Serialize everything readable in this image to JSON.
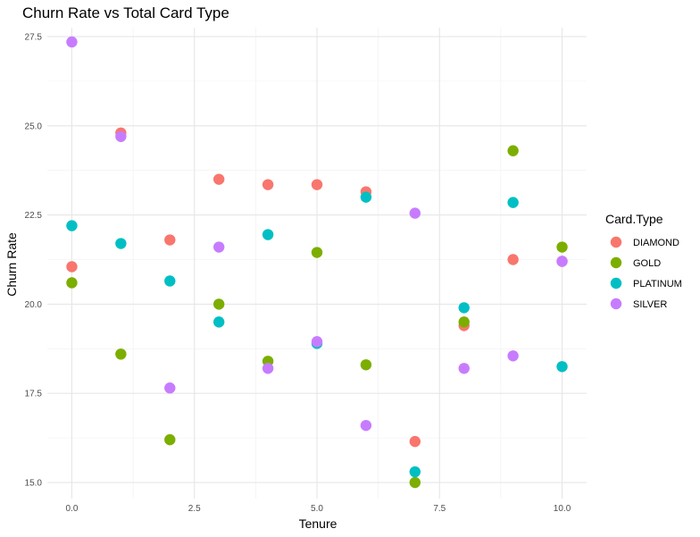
{
  "chart_data": {
    "type": "scatter",
    "title": "Churn Rate vs Total Card Type",
    "xlabel": "Tenure",
    "ylabel": "Churn Rate",
    "xlim": [
      -0.5,
      10.5
    ],
    "ylim": [
      14.55,
      27.75
    ],
    "x_ticks": [
      0.0,
      2.5,
      5.0,
      7.5,
      10.0
    ],
    "x_tick_labels": [
      "0.0",
      "2.5",
      "5.0",
      "7.5",
      "10.0"
    ],
    "y_ticks": [
      15.0,
      17.5,
      20.0,
      22.5,
      25.0,
      27.5
    ],
    "y_tick_labels": [
      "15.0",
      "17.5",
      "20.0",
      "22.5",
      "25.0",
      "27.5"
    ],
    "grid": true,
    "legend": {
      "title": "Card.Type",
      "position": "right"
    },
    "series": [
      {
        "name": "DIAMOND",
        "color": "#F8766D",
        "points": [
          {
            "x": 0,
            "y": 21.05
          },
          {
            "x": 1,
            "y": 24.8
          },
          {
            "x": 2,
            "y": 21.8
          },
          {
            "x": 3,
            "y": 23.5
          },
          {
            "x": 4,
            "y": 23.35
          },
          {
            "x": 5,
            "y": 23.35
          },
          {
            "x": 6,
            "y": 23.15
          },
          {
            "x": 7,
            "y": 16.15
          },
          {
            "x": 8,
            "y": 19.4
          },
          {
            "x": 9,
            "y": 21.25
          },
          {
            "x": 10,
            "y": 21.2
          }
        ]
      },
      {
        "name": "GOLD",
        "color": "#7CAE00",
        "points": [
          {
            "x": 0,
            "y": 20.6
          },
          {
            "x": 1,
            "y": 18.6
          },
          {
            "x": 2,
            "y": 16.2
          },
          {
            "x": 3,
            "y": 20.0
          },
          {
            "x": 4,
            "y": 18.4
          },
          {
            "x": 5,
            "y": 21.45
          },
          {
            "x": 6,
            "y": 18.3
          },
          {
            "x": 7,
            "y": 15.0
          },
          {
            "x": 8,
            "y": 19.5
          },
          {
            "x": 9,
            "y": 24.3
          },
          {
            "x": 10,
            "y": 21.6
          }
        ]
      },
      {
        "name": "PLATINUM",
        "color": "#00BFC4",
        "points": [
          {
            "x": 0,
            "y": 22.2
          },
          {
            "x": 1,
            "y": 21.7
          },
          {
            "x": 2,
            "y": 20.65
          },
          {
            "x": 3,
            "y": 19.5
          },
          {
            "x": 4,
            "y": 21.95
          },
          {
            "x": 5,
            "y": 18.9
          },
          {
            "x": 6,
            "y": 23.0
          },
          {
            "x": 7,
            "y": 15.3
          },
          {
            "x": 8,
            "y": 19.9
          },
          {
            "x": 9,
            "y": 22.85
          },
          {
            "x": 10,
            "y": 18.25
          }
        ]
      },
      {
        "name": "SILVER",
        "color": "#C77CFF",
        "points": [
          {
            "x": 0,
            "y": 27.35
          },
          {
            "x": 1,
            "y": 24.7
          },
          {
            "x": 2,
            "y": 17.65
          },
          {
            "x": 3,
            "y": 21.6
          },
          {
            "x": 4,
            "y": 18.2
          },
          {
            "x": 5,
            "y": 18.95
          },
          {
            "x": 6,
            "y": 16.6
          },
          {
            "x": 7,
            "y": 22.55
          },
          {
            "x": 8,
            "y": 18.2
          },
          {
            "x": 9,
            "y": 18.55
          },
          {
            "x": 10,
            "y": 21.2
          }
        ]
      }
    ]
  }
}
